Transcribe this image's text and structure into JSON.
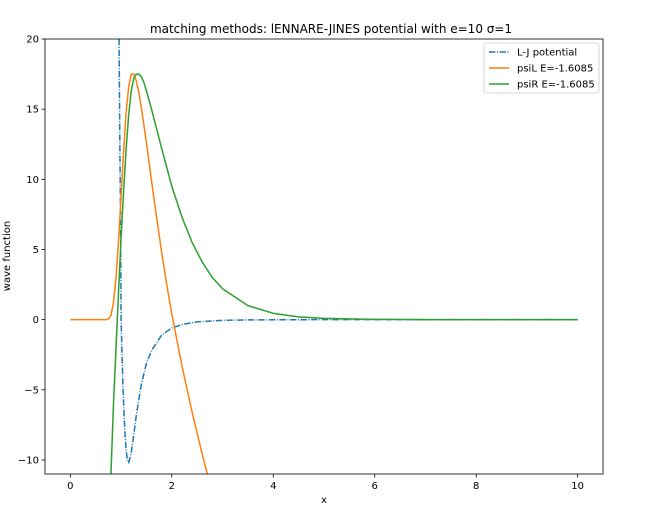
{
  "chart_data": {
    "type": "line",
    "title": "matching methods: lENNARE-JINES potential with e=10 σ=1",
    "xlabel": "x",
    "ylabel": "wave function",
    "xlim": [
      -0.5,
      10.5
    ],
    "ylim": [
      -11,
      20
    ],
    "xticks": [
      0,
      2,
      4,
      6,
      8,
      10
    ],
    "xtick_labels": [
      "0",
      "2",
      "4",
      "6",
      "8",
      "10"
    ],
    "yticks": [
      -10,
      -5,
      0,
      5,
      10,
      15,
      20
    ],
    "ytick_labels": [
      "−10",
      "−5",
      "0",
      "5",
      "10",
      "15",
      "20"
    ],
    "grid": false,
    "legend_position": "top-right",
    "series": [
      {
        "name": "L-J potential",
        "color": "#1f77b4",
        "style": "dashdot",
        "x": [
          0.96,
          0.97,
          0.98,
          0.99,
          1.0,
          1.02,
          1.04,
          1.06,
          1.08,
          1.1,
          1.12,
          1.15,
          1.2,
          1.25,
          1.3,
          1.4,
          1.5,
          1.6,
          1.8,
          2.0,
          2.2,
          2.5,
          3.0,
          3.5,
          4.0,
          5.0,
          6.0,
          7.0,
          8.0,
          9.0,
          10.0
        ],
        "y": [
          20.0,
          15.1,
          10.7,
          7.0,
          0.0,
          -2.7,
          -5.1,
          -6.9,
          -8.3,
          -9.3,
          -9.9,
          -10.2,
          -9.5,
          -8.2,
          -6.8,
          -4.6,
          -3.1,
          -2.2,
          -1.1,
          -0.6,
          -0.35,
          -0.16,
          -0.05,
          -0.02,
          -0.01,
          0.0,
          0.0,
          0.0,
          0.0,
          0.0,
          0.0
        ]
      },
      {
        "name": "psiL E=-1.6085",
        "color": "#ff7f0e",
        "style": "solid",
        "x": [
          0.0,
          0.5,
          0.7,
          0.75,
          0.8,
          0.85,
          0.9,
          0.95,
          1.0,
          1.05,
          1.1,
          1.15,
          1.2,
          1.25,
          1.3,
          1.35,
          1.4,
          1.5,
          1.6,
          1.7,
          1.8,
          1.9,
          2.0,
          2.2,
          2.4,
          2.6,
          2.7
        ],
        "y": [
          0.0,
          0.0,
          0.0,
          0.05,
          0.3,
          1.2,
          3.0,
          5.6,
          8.8,
          12.0,
          14.8,
          16.6,
          17.5,
          17.5,
          17.0,
          16.2,
          15.1,
          12.6,
          9.9,
          7.3,
          4.8,
          2.5,
          0.4,
          -3.3,
          -6.6,
          -9.6,
          -11.0
        ]
      },
      {
        "name": "psiR E=-1.6085",
        "color": "#2ca02c",
        "style": "solid",
        "x": [
          0.8,
          0.85,
          0.9,
          0.95,
          1.0,
          1.05,
          1.1,
          1.15,
          1.2,
          1.25,
          1.3,
          1.35,
          1.4,
          1.45,
          1.5,
          1.6,
          1.7,
          1.8,
          2.0,
          2.2,
          2.4,
          2.6,
          2.8,
          3.0,
          3.5,
          4.0,
          4.5,
          5.0,
          6.0,
          7.0,
          8.0,
          9.0,
          10.0
        ],
        "y": [
          -11.0,
          -6.0,
          -2.0,
          2.0,
          5.8,
          9.2,
          12.2,
          14.6,
          16.3,
          17.2,
          17.5,
          17.5,
          17.3,
          16.9,
          16.3,
          15.0,
          13.6,
          12.2,
          9.5,
          7.3,
          5.5,
          4.1,
          3.0,
          2.2,
          1.0,
          0.45,
          0.2,
          0.09,
          0.02,
          0.0,
          0.0,
          0.0,
          0.0
        ]
      }
    ]
  }
}
